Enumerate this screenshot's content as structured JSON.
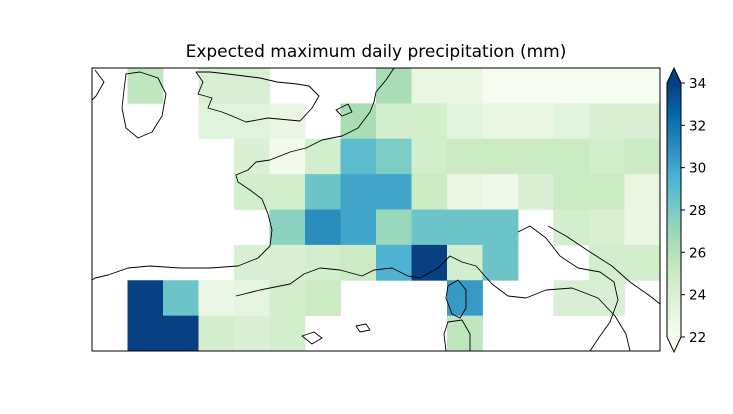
{
  "chart_data": {
    "type": "heatmap",
    "title": "Expected maximum daily precipitation (mm)",
    "colormap": "GnBu",
    "vmin": 22,
    "vmax": 34,
    "colorbar": {
      "ticks": [
        22,
        24,
        26,
        28,
        30,
        32,
        34
      ],
      "tick_labels": [
        "22",
        "24",
        "26",
        "28",
        "30",
        "32",
        "34"
      ],
      "extend": "both",
      "placement": "right"
    },
    "grid_rows": 8,
    "grid_cols": 16,
    "values": [
      [
        null,
        25.5,
        null,
        24.0,
        24.0,
        null,
        null,
        null,
        26.5,
        23.0,
        23.0,
        22.0,
        22.0,
        22.0,
        22.0,
        22.0
      ],
      [
        null,
        null,
        null,
        23.5,
        23.5,
        23.0,
        null,
        26.5,
        24.5,
        24.5,
        23.5,
        23.0,
        23.0,
        23.5,
        24.0,
        24.0
      ],
      [
        null,
        null,
        null,
        null,
        24.0,
        22.3,
        24.5,
        29.0,
        28.0,
        24.5,
        25.0,
        25.0,
        25.0,
        25.0,
        24.5,
        25.0
      ],
      [
        null,
        null,
        null,
        null,
        24.5,
        24.5,
        28.5,
        30.0,
        30.0,
        25.0,
        23.0,
        22.5,
        24.0,
        25.0,
        25.0,
        23.0
      ],
      [
        null,
        null,
        null,
        null,
        null,
        27.5,
        31.0,
        30.0,
        27.0,
        28.5,
        28.5,
        28.5,
        null,
        24.5,
        24.0,
        23.0
      ],
      [
        null,
        null,
        null,
        null,
        24.0,
        24.0,
        24.5,
        25.0,
        29.5,
        34.0,
        24.5,
        28.5,
        null,
        null,
        24.5,
        24.5
      ],
      [
        null,
        34.0,
        28.5,
        22.8,
        23.2,
        24.5,
        25.0,
        null,
        null,
        null,
        30.5,
        null,
        null,
        24.0,
        24.0,
        null
      ],
      [
        null,
        34.0,
        34.0,
        24.5,
        24.0,
        24.5,
        null,
        null,
        null,
        null,
        25.5,
        null,
        null,
        null,
        null,
        null
      ]
    ]
  }
}
